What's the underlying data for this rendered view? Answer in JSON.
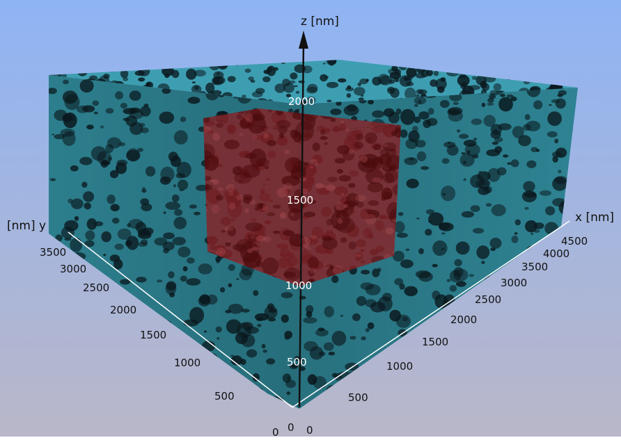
{
  "axes": {
    "x": {
      "title": "x [nm]",
      "ticks": [
        "0",
        "500",
        "1000",
        "1500",
        "2000",
        "2500",
        "3000",
        "3500",
        "4000",
        "4500"
      ]
    },
    "y": {
      "title": "[nm] y",
      "ticks": [
        "0",
        "500",
        "1000",
        "1500",
        "2000",
        "2500",
        "3000",
        "3500"
      ]
    },
    "z": {
      "title": "z [nm]",
      "ticks": [
        "0",
        "500",
        "1000",
        "1500",
        "2000"
      ]
    }
  },
  "colors": {
    "background_top": "#8fb4f4",
    "background_bottom": "#b9b7c9",
    "material": "#2f8595",
    "material_light": "#3e9eb1",
    "pore": "#0b1a20",
    "sub_volume": "#8c1f22"
  }
}
